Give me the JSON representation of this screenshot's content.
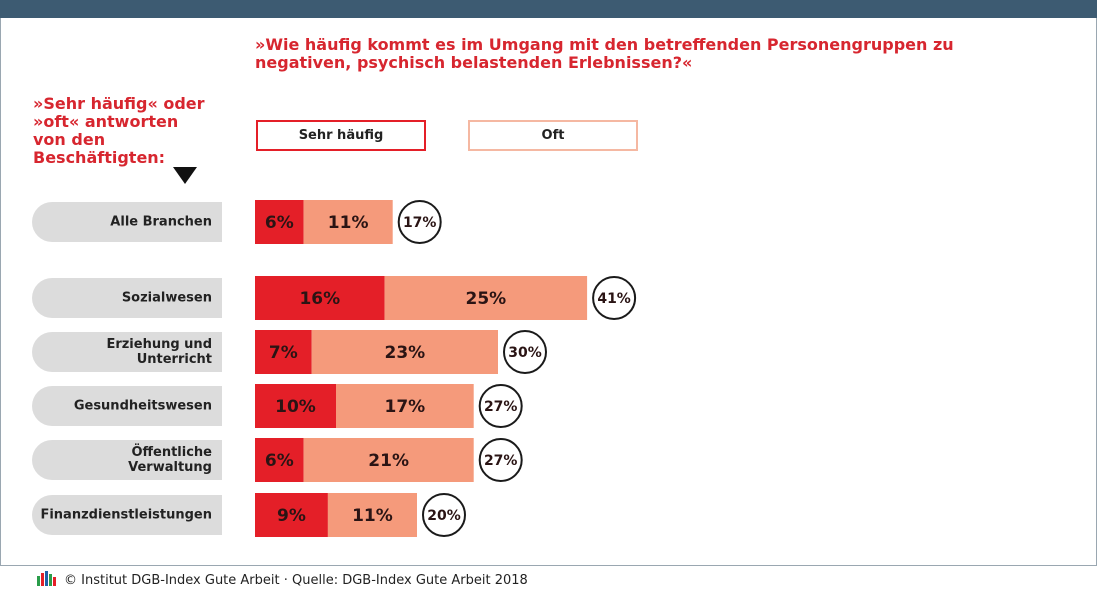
{
  "chart_data": {
    "type": "stacked-bar-horizontal",
    "title": "»Wie häufig kommt es im Umgang mit den betreffenden Personengruppen zu negativen, psychisch belastenden Erlebnissen?«",
    "subtitle": "»Sehr häufig« oder »oft« antworten von den Beschäftigten:",
    "categories": [
      "Alle Branchen",
      "Sozialwesen",
      "Erziehung und Unterricht",
      "Gesundheitswesen",
      "Öffentliche Verwaltung",
      "Finanzdienstleistungen"
    ],
    "series": [
      {
        "name": "Sehr häufig",
        "color": "#e41f28",
        "values": [
          6,
          16,
          7,
          10,
          6,
          9
        ],
        "value_labels": [
          "6%",
          "16%",
          "7%",
          "10%",
          "6%",
          "9%"
        ]
      },
      {
        "name": "Oft",
        "color": "#f59a7b",
        "values": [
          11,
          25,
          23,
          17,
          21,
          11
        ],
        "value_labels": [
          "11%",
          "25%",
          "23%",
          "17%",
          "21%",
          "11%"
        ]
      }
    ],
    "totals": [
      17,
      41,
      30,
      27,
      27,
      20
    ],
    "total_labels": [
      "17%",
      "41%",
      "30%",
      "27%",
      "27%",
      "20%"
    ],
    "footer": "© Institut DGB-Index Gute Arbeit · Quelle: DGB-Index Gute Arbeit 2018"
  }
}
